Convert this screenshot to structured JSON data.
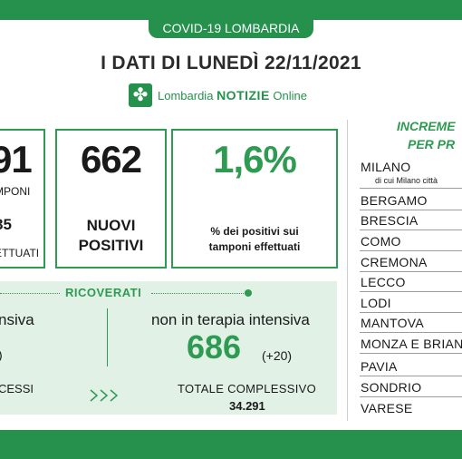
{
  "header": {
    "region_tag": "COVID-19 LOMBARDIA",
    "headline": "I DATI DI LUNEDÌ 22/11/2021",
    "brand_prefix": "Lombardia",
    "brand_name": "NOTIZIE",
    "brand_suffix": "Online"
  },
  "cards": {
    "tamponi": {
      "number": "91",
      "label": "MPONI",
      "sub_number": "85",
      "sub_label": "ETTUATI"
    },
    "positivi": {
      "number": "662",
      "label_line1": "NUOVI",
      "label_line2": "POSITIVI"
    },
    "percentuale": {
      "number": "1,6%",
      "label_line1": "% dei positivi sui",
      "label_line2": "tamponi effettuati"
    }
  },
  "ricoverati": {
    "title": "RICOVERATI",
    "intensiva_label": "nsiva",
    "intensiva_value": ")",
    "non_intensiva_label": "non in terapia intensiva",
    "non_intensiva_value": "686",
    "non_intensiva_delta": "(+20)",
    "decessi_label": "CESSI",
    "totale_label": "TOTALE COMPLESSIVO",
    "totale_value": "34.291"
  },
  "sidebar": {
    "title_line1": "INCREME",
    "title_line2": "PER PR",
    "provinces": [
      {
        "name": "MILANO",
        "note": "di cui Milano città"
      },
      {
        "name": "BERGAMO"
      },
      {
        "name": "BRESCIA"
      },
      {
        "name": "COMO"
      },
      {
        "name": "CREMONA"
      },
      {
        "name": "LECCO"
      },
      {
        "name": "LODI"
      },
      {
        "name": "MANTOVA"
      },
      {
        "name": "MONZA E BRIAN"
      },
      {
        "name": "PAVIA"
      },
      {
        "name": "SONDRIO"
      },
      {
        "name": "VARESE"
      }
    ]
  },
  "colors": {
    "brand_green": "#25914d",
    "panel_green": "#e1f1e6",
    "text_dark": "#1a1a1a"
  },
  "icons": {
    "brand": "lombardy-rose-icon",
    "arrows": "chevron-arrows-icon"
  }
}
